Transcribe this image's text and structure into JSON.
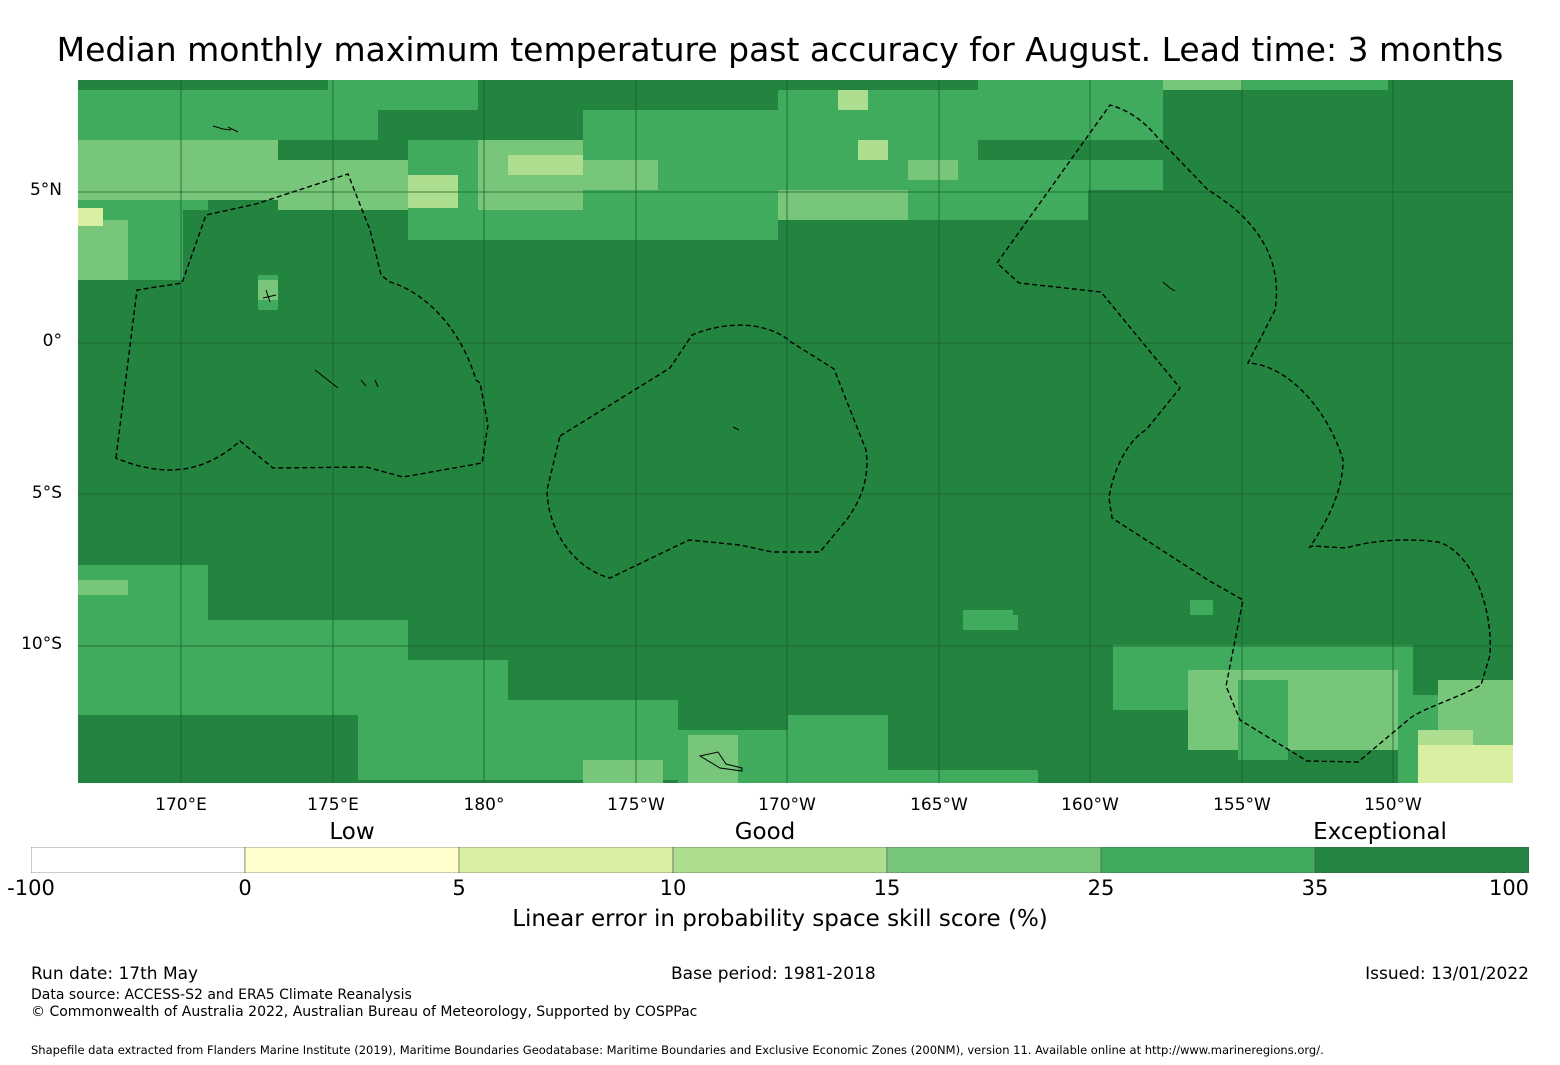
{
  "title": "Median monthly maximum temperature past accuracy for August. Lead time: 3 months",
  "map": {
    "lat_labels": [
      "5°N",
      "0°",
      "5°S",
      "10°S"
    ],
    "lon_labels": [
      "170°E",
      "175°E",
      "180°",
      "175°W",
      "170°W",
      "165°W",
      "160°W",
      "155°W",
      "150°W"
    ],
    "background_color": "#23843f",
    "features": [
      "EEZ boundary dashed outlines",
      "island coastlines"
    ]
  },
  "legend": {
    "categories": [
      "Low",
      "Good",
      "Exceptional"
    ],
    "colors": [
      "#ffffff",
      "#ffffcc",
      "#d9f0a3",
      "#addd8e",
      "#78c679",
      "#41ab5d",
      "#238443"
    ],
    "ticks": [
      "-100",
      "0",
      "5",
      "10",
      "15",
      "25",
      "35",
      "100"
    ],
    "title": "Linear error in probability space skill score (%)"
  },
  "footer": {
    "run_date": "Run date: 17th May",
    "base_period": "Base period: 1981-2018",
    "issued": "Issued: 13/01/2022",
    "data_source": "Data source: ACCESS-S2 and ERA5 Climate Reanalysis",
    "copyright": "© Commonwealth of Australia 2022, Australian Bureau of Meteorology, Supported by COSPPac",
    "shapefile": "Shapefile data extracted from Flanders Marine Institute (2019), Maritime Boundaries Geodatabase: Maritime Boundaries and Exclusive Economic Zones (200NM), version 11. Available online at http://www.marineregions.org/."
  }
}
